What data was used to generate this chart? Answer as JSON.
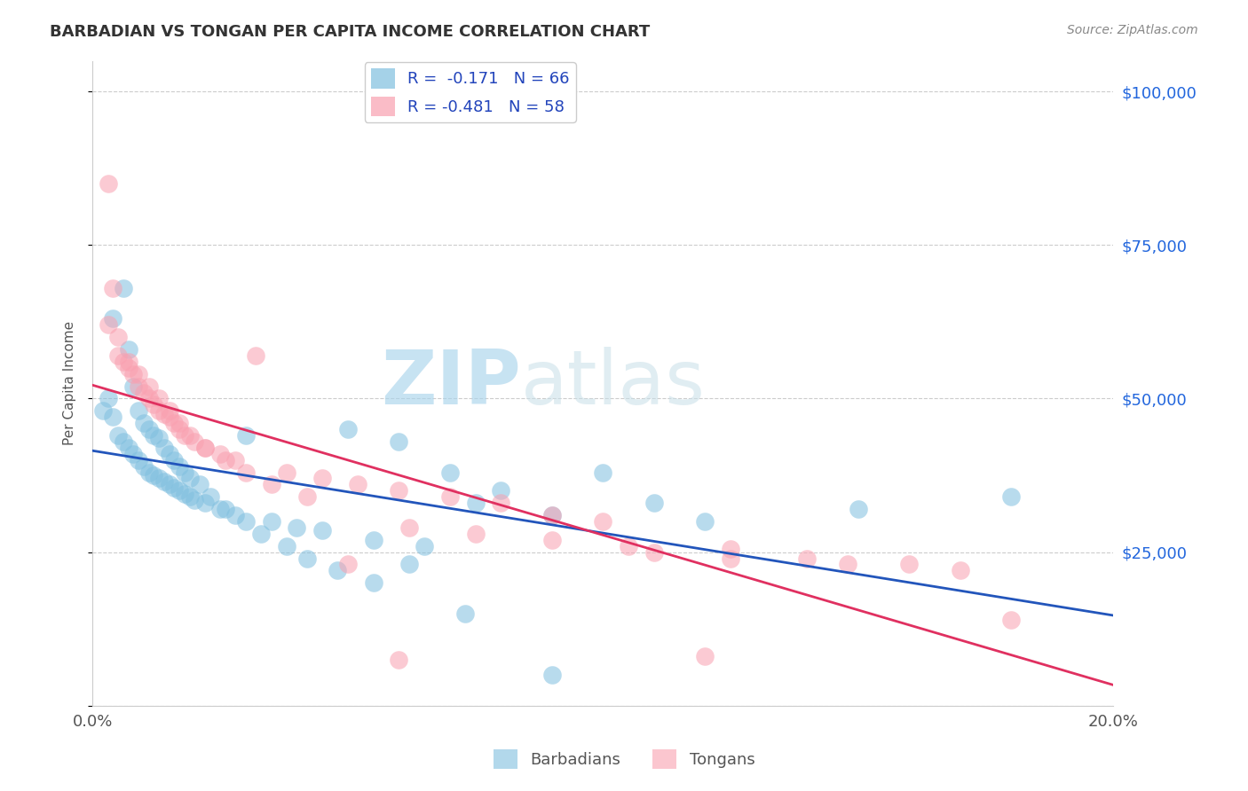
{
  "title": "BARBADIAN VS TONGAN PER CAPITA INCOME CORRELATION CHART",
  "source": "Source: ZipAtlas.com",
  "ylabel": "Per Capita Income",
  "watermark_zip": "ZIP",
  "watermark_atlas": "atlas",
  "xlim": [
    0.0,
    0.2
  ],
  "ylim": [
    0,
    105000
  ],
  "yticks": [
    0,
    25000,
    50000,
    75000,
    100000
  ],
  "ytick_labels": [
    "",
    "$25,000",
    "$50,000",
    "$75,000",
    "$100,000"
  ],
  "xticks": [
    0.0,
    0.05,
    0.1,
    0.15,
    0.2
  ],
  "xtick_labels": [
    "0.0%",
    "",
    "",
    "",
    "20.0%"
  ],
  "blue_R": -0.171,
  "blue_N": 66,
  "pink_R": -0.481,
  "pink_N": 58,
  "blue_color": "#7fbfdf",
  "pink_color": "#f9a0b0",
  "blue_line_color": "#2255bb",
  "pink_line_color": "#e03060",
  "blue_scatter_x": [
    0.002,
    0.003,
    0.004,
    0.005,
    0.006,
    0.007,
    0.008,
    0.009,
    0.01,
    0.011,
    0.012,
    0.013,
    0.014,
    0.015,
    0.016,
    0.017,
    0.018,
    0.019,
    0.02,
    0.022,
    0.025,
    0.028,
    0.03,
    0.035,
    0.04,
    0.045,
    0.05,
    0.055,
    0.06,
    0.065,
    0.07,
    0.075,
    0.08,
    0.09,
    0.1,
    0.11,
    0.12,
    0.15,
    0.18,
    0.004,
    0.006,
    0.007,
    0.008,
    0.009,
    0.01,
    0.011,
    0.012,
    0.013,
    0.014,
    0.015,
    0.016,
    0.017,
    0.018,
    0.019,
    0.021,
    0.023,
    0.026,
    0.03,
    0.033,
    0.038,
    0.042,
    0.048,
    0.055,
    0.062,
    0.073,
    0.09
  ],
  "blue_scatter_y": [
    48000,
    50000,
    47000,
    44000,
    43000,
    42000,
    41000,
    40000,
    39000,
    38000,
    37500,
    37000,
    36500,
    36000,
    35500,
    35000,
    34500,
    34000,
    33500,
    33000,
    32000,
    31000,
    44000,
    30000,
    29000,
    28500,
    45000,
    27000,
    43000,
    26000,
    38000,
    33000,
    35000,
    31000,
    38000,
    33000,
    30000,
    32000,
    34000,
    63000,
    68000,
    58000,
    52000,
    48000,
    46000,
    45000,
    44000,
    43500,
    42000,
    41000,
    40000,
    39000,
    38000,
    37000,
    36000,
    34000,
    32000,
    30000,
    28000,
    26000,
    24000,
    22000,
    20000,
    23000,
    15000,
    5000
  ],
  "pink_scatter_x": [
    0.003,
    0.004,
    0.005,
    0.006,
    0.007,
    0.008,
    0.009,
    0.01,
    0.011,
    0.012,
    0.013,
    0.014,
    0.015,
    0.016,
    0.017,
    0.018,
    0.02,
    0.022,
    0.025,
    0.028,
    0.032,
    0.038,
    0.045,
    0.052,
    0.06,
    0.07,
    0.08,
    0.09,
    0.1,
    0.11,
    0.125,
    0.14,
    0.16,
    0.18,
    0.003,
    0.005,
    0.007,
    0.009,
    0.011,
    0.013,
    0.015,
    0.017,
    0.019,
    0.022,
    0.026,
    0.03,
    0.035,
    0.042,
    0.05,
    0.062,
    0.075,
    0.09,
    0.105,
    0.125,
    0.148,
    0.17,
    0.06,
    0.12
  ],
  "pink_scatter_y": [
    85000,
    68000,
    60000,
    56000,
    55000,
    54000,
    52000,
    51000,
    50000,
    49000,
    48000,
    47500,
    47000,
    46000,
    45000,
    44000,
    43000,
    42000,
    41000,
    40000,
    57000,
    38000,
    37000,
    36000,
    35000,
    34000,
    33000,
    31000,
    30000,
    25000,
    25500,
    24000,
    23000,
    14000,
    62000,
    57000,
    56000,
    54000,
    52000,
    50000,
    48000,
    46000,
    44000,
    42000,
    40000,
    38000,
    36000,
    34000,
    23000,
    29000,
    28000,
    27000,
    26000,
    24000,
    23000,
    22000,
    7500,
    8000
  ]
}
